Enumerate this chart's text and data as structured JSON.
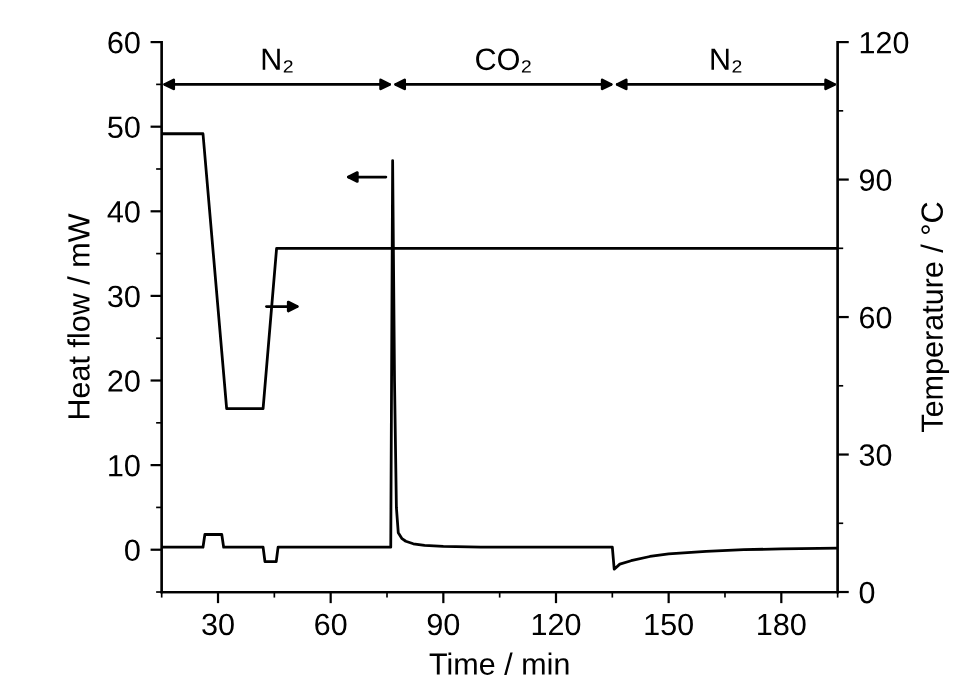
{
  "chart_data": {
    "type": "line",
    "xlabel": "Time / min",
    "ylabel": "Heat flow / mW",
    "y2label": "Temperature / °C",
    "xlim": [
      15,
      195
    ],
    "xticks": [
      30,
      60,
      90,
      120,
      150,
      180
    ],
    "ylim": [
      -5,
      60
    ],
    "yticks": [
      0,
      10,
      20,
      30,
      40,
      50,
      60
    ],
    "y2lim": [
      0,
      120
    ],
    "y2ticks": [
      0,
      30,
      60,
      90,
      120
    ],
    "grid": false,
    "legend": false,
    "marker": "none",
    "line_style": "solid",
    "series": [
      {
        "color": "#000000",
        "axis": "y",
        "x": [
          15,
          26,
          26.5,
          31,
          31.5,
          42,
          42.5,
          45.5,
          46,
          76,
          76.5,
          77,
          77.5,
          78,
          79,
          80,
          82,
          85,
          90,
          100,
          120,
          135,
          135.5,
          137,
          140,
          145,
          150,
          160,
          170,
          180,
          195
        ],
        "values": [
          0.3,
          0.3,
          1.8,
          1.8,
          0.3,
          0.3,
          -1.4,
          -1.4,
          0.3,
          0.3,
          46,
          20,
          5,
          2,
          1.3,
          1,
          0.7,
          0.5,
          0.4,
          0.3,
          0.3,
          0.3,
          -2.3,
          -1.7,
          -1.3,
          -0.8,
          -0.5,
          -0.2,
          0,
          0.1,
          0.2
        ]
      },
      {
        "color": "#000000",
        "axis": "y2",
        "x": [
          15,
          26,
          32.3,
          42,
          45.6,
          195
        ],
        "values": [
          100,
          100,
          40,
          40,
          75,
          75
        ]
      }
    ],
    "annotations": [
      "N₂",
      "CO₂",
      "N₂"
    ]
  }
}
